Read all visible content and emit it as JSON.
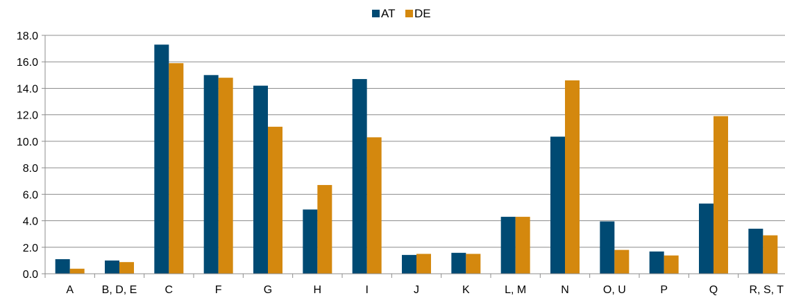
{
  "chart_data": {
    "type": "bar",
    "categories": [
      "A",
      "B, D, E",
      "C",
      "F",
      "G",
      "H",
      "I",
      "J",
      "K",
      "L, M",
      "N",
      "O, U",
      "P",
      "Q",
      "R, S, T"
    ],
    "series": [
      {
        "name": "AT",
        "color": "#004a73",
        "values": [
          1.1,
          1.0,
          17.3,
          15.0,
          14.2,
          4.85,
          14.7,
          1.42,
          1.58,
          4.3,
          10.35,
          3.95,
          1.68,
          5.3,
          3.4
        ]
      },
      {
        "name": "DE",
        "color": "#d4880e",
        "values": [
          0.38,
          0.88,
          15.9,
          14.8,
          11.1,
          6.7,
          10.3,
          1.5,
          1.5,
          4.3,
          14.6,
          1.8,
          1.38,
          11.9,
          2.9
        ]
      }
    ],
    "y_ticks": [
      "0.0",
      "2.0",
      "4.0",
      "6.0",
      "8.0",
      "10.0",
      "12.0",
      "14.0",
      "16.0",
      "18.0"
    ],
    "ylim": [
      0,
      18
    ],
    "grid": true,
    "legend_position": "top-center",
    "title": "",
    "xlabel": "",
    "ylabel": ""
  }
}
